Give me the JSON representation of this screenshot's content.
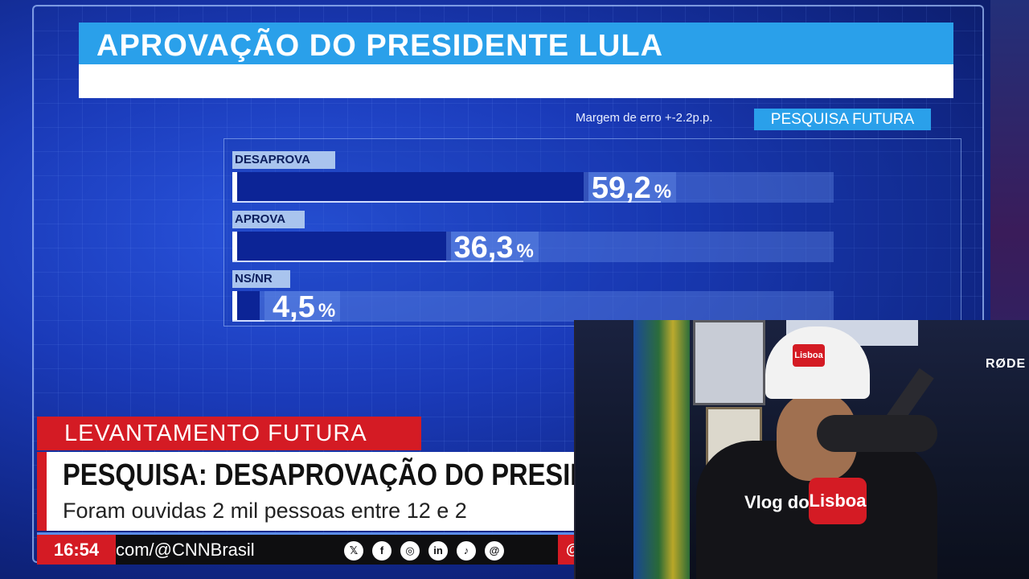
{
  "chart_data": {
    "type": "bar",
    "title": "APROVAÇÃO DO PRESIDENTE LULA",
    "margin_of_error": "Margem de erro +-2.2p.p.",
    "source": "PESQUISA FUTURA",
    "categories": [
      "DESAPROVA",
      "APROVA",
      "NS/NR"
    ],
    "values": [
      59.2,
      36.3,
      4.5
    ],
    "value_labels": [
      "59,2",
      "36,3",
      "4,5"
    ],
    "unit": "%",
    "orientation": "horizontal",
    "xlim": [
      0,
      100
    ],
    "colors": {
      "bar": "#0c2496",
      "track": "#6e96eb",
      "label_bg": "#a9c4ee",
      "accent": "#2aa0ea"
    }
  },
  "lower_third": {
    "kicker": "LEVANTAMENTO FUTURA",
    "headline": "PESQUISA: DESAPROVAÇÃO DO PRESIDE",
    "subhead": "Foram ouvidas 2 mil pessoas entre 12 e 2",
    "accent_color": "#d41b24"
  },
  "ticker": {
    "time": "16:54",
    "handle": "com/@CNNBrasil",
    "social_icons": [
      "x-icon",
      "facebook-icon",
      "instagram-icon",
      "linkedin-icon",
      "tiktok-icon",
      "threads-icon"
    ],
    "social_glyphs": [
      "𝕏",
      "f",
      "◎",
      "in",
      "♪",
      "@"
    ],
    "tail_glyph": "@"
  },
  "webcam": {
    "cap_text": "Lisboa",
    "shirt_text_left": "Vlog do",
    "shirt_text_right": "Lisboa",
    "mic_brand": "RØDE"
  }
}
